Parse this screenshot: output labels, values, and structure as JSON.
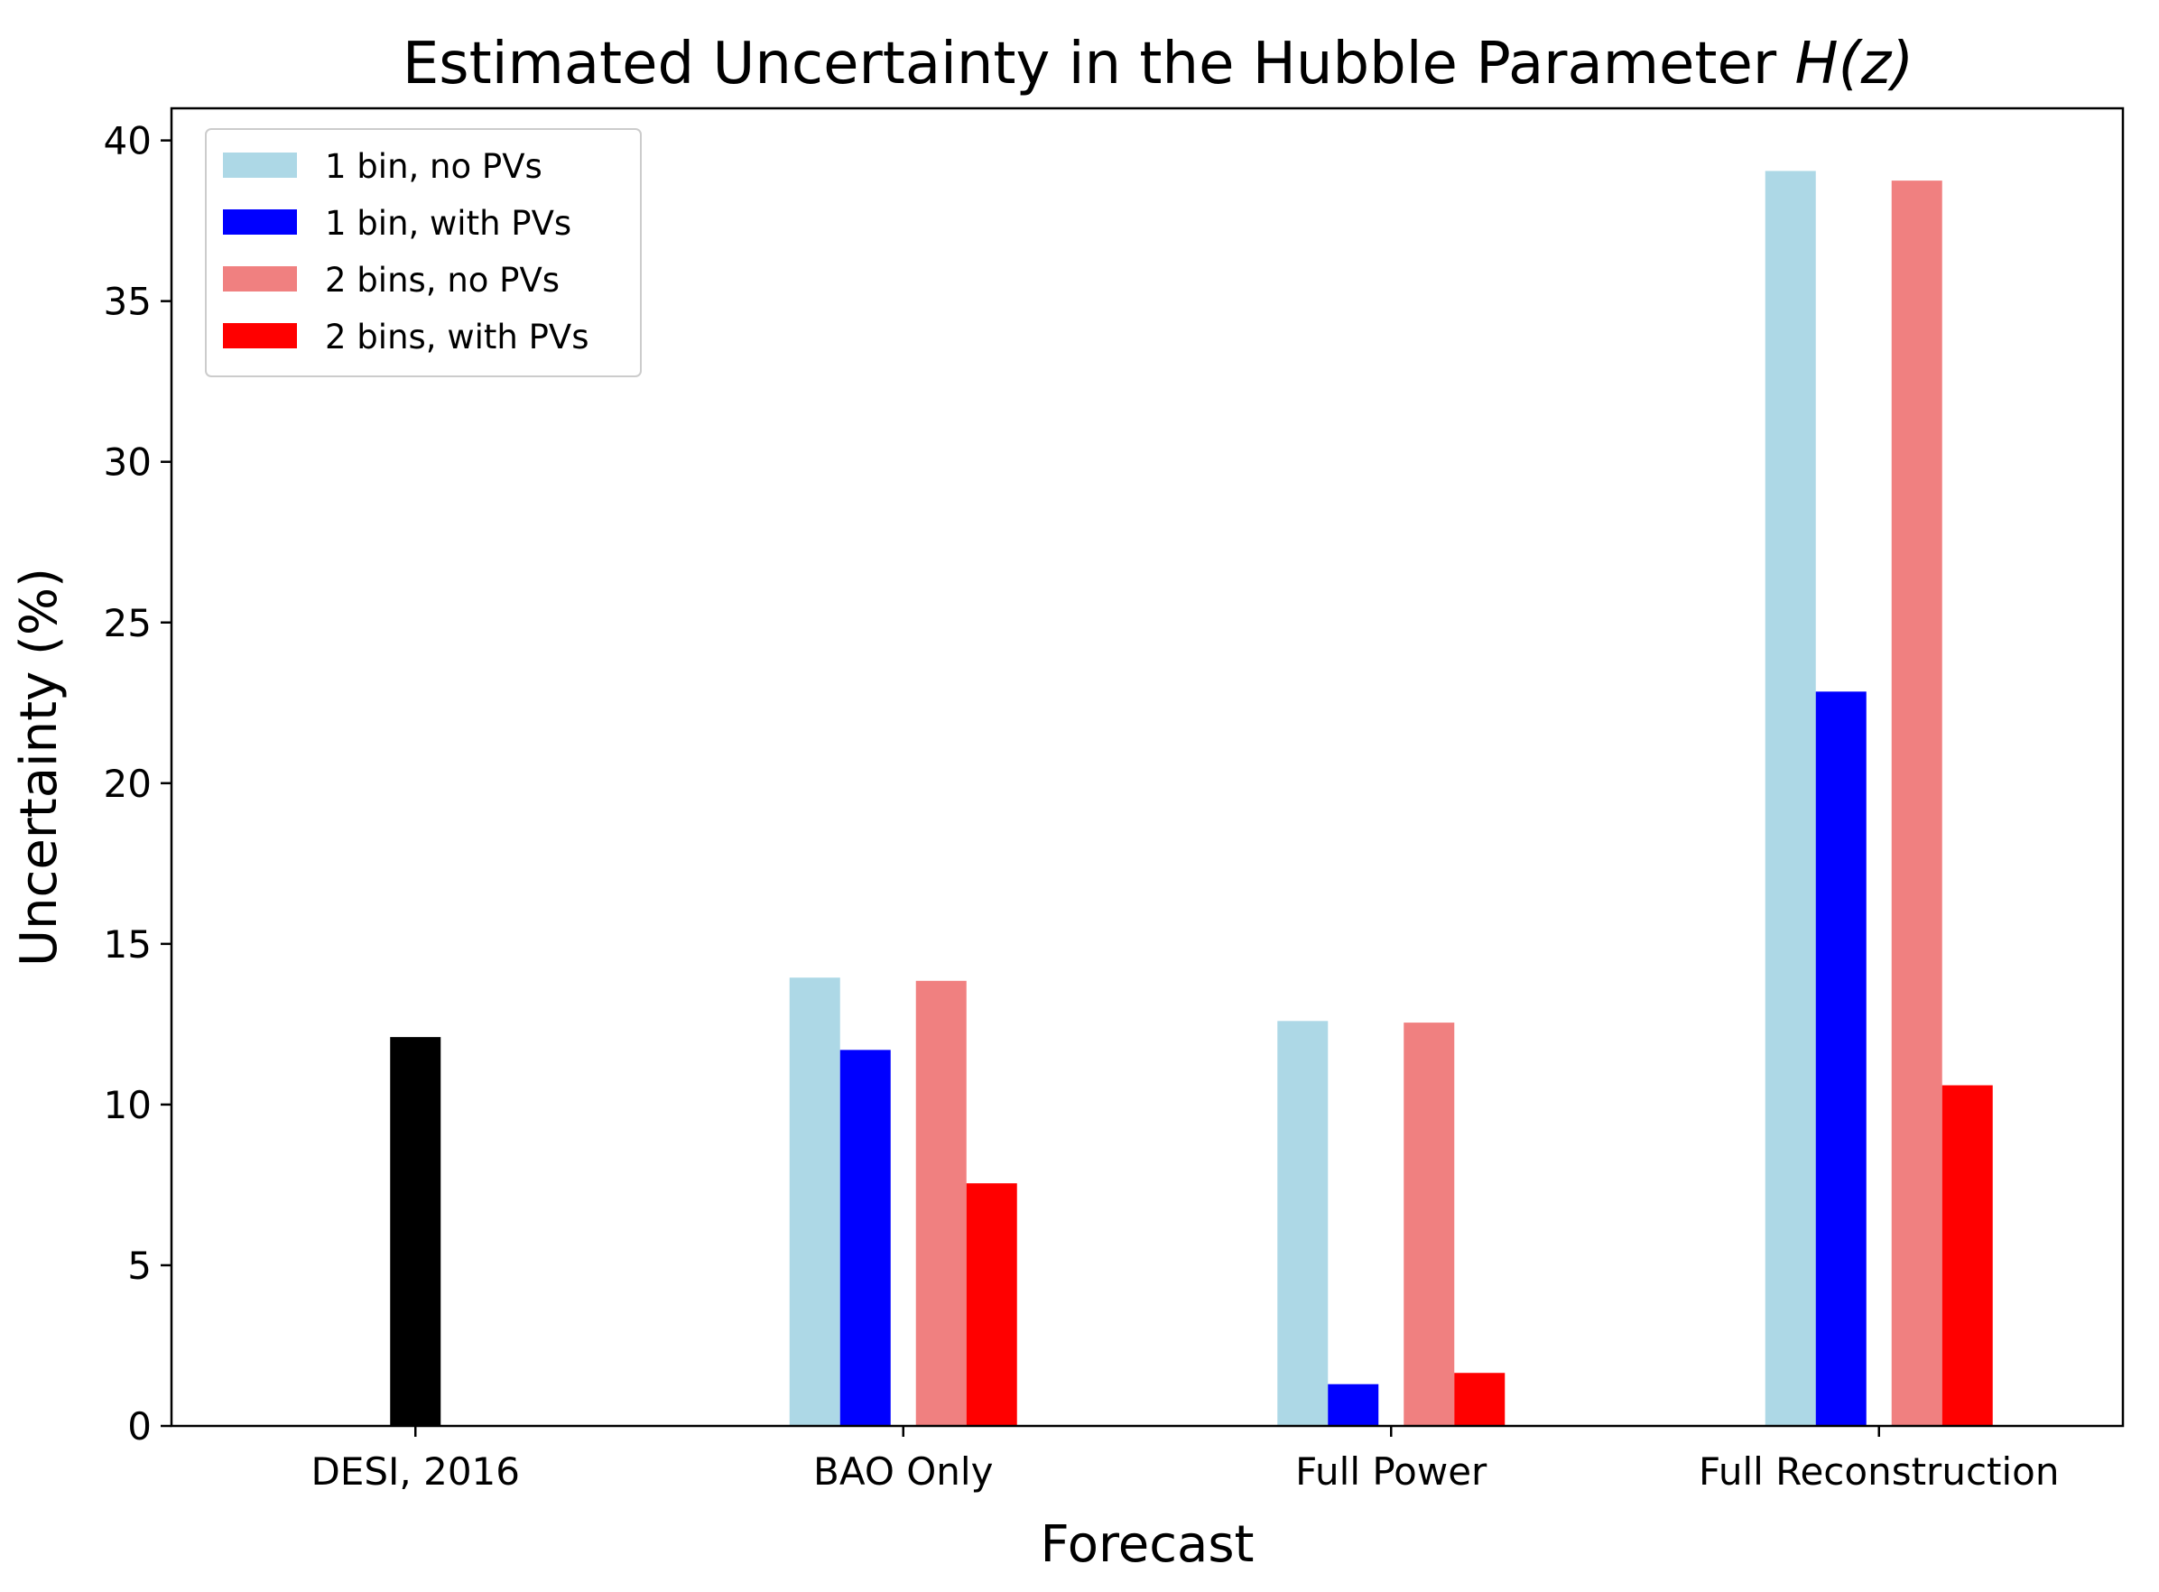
{
  "chart_data": {
    "type": "bar",
    "title": "Estimated Uncertainty in the Hubble Parameter",
    "title_math": "H(z)",
    "xlabel": "Forecast",
    "ylabel": "Uncertainty (%)",
    "categories": [
      "DESI, 2016",
      "BAO Only",
      "Full Power",
      "Full Reconstruction"
    ],
    "ylim": [
      0,
      41
    ],
    "yticks": [
      0,
      5,
      10,
      15,
      20,
      25,
      30,
      35,
      40
    ],
    "grid": false,
    "legend": {
      "placement": "upper-left"
    },
    "reference": {
      "category": "DESI, 2016",
      "value": 12.1,
      "color": "#000000"
    },
    "series": [
      {
        "name": "1 bin, no PVs",
        "color": "#add8e6",
        "values": [
          null,
          13.95,
          12.6,
          39.05
        ]
      },
      {
        "name": "1 bin, with PVs",
        "color": "#0000ff",
        "values": [
          null,
          11.7,
          1.3,
          22.85
        ]
      },
      {
        "name": "2 bins, no PVs",
        "color": "#f08080",
        "values": [
          null,
          13.85,
          12.55,
          38.75
        ]
      },
      {
        "name": "2 bins, with PVs",
        "color": "#ff0000",
        "values": [
          null,
          7.55,
          1.65,
          10.6
        ]
      }
    ]
  }
}
